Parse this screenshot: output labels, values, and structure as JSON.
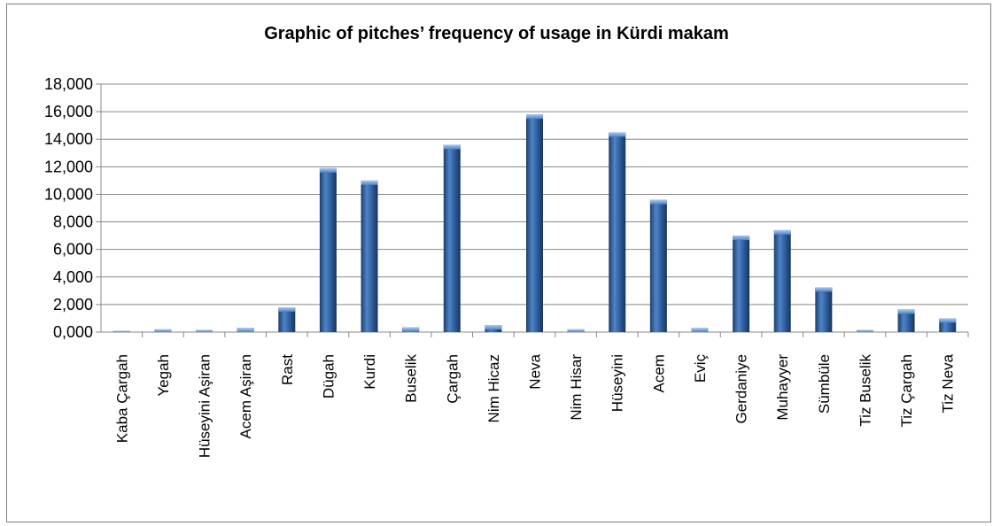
{
  "chart_data": {
    "type": "bar",
    "title": "Graphic of pitches’ frequency of usage in Kürdi makam",
    "xlabel": "",
    "ylabel": "",
    "ylim": [
      0,
      18000
    ],
    "y_ticks": [
      "0,000",
      "2,000",
      "4,000",
      "6,000",
      "8,000",
      "10,000",
      "12,000",
      "14,000",
      "16,000",
      "18,000"
    ],
    "grid": true,
    "legend": "none",
    "categories": [
      "Kaba Çargah",
      "Yegah",
      "Hüseyini Aşiran",
      "Acem Aşiran",
      "Rast",
      "Dügah",
      "Kurdi",
      "Buselik",
      "Çargah",
      "Nim Hicaz",
      "Neva",
      "Nim Hisar",
      "Hüseyini",
      "Acem",
      "Eviç",
      "Gerdaniye",
      "Muhayyer",
      "Sümbüle",
      "Tiz Buselik",
      "Tiz Çargah",
      "Tiz Neva"
    ],
    "values": [
      50,
      200,
      150,
      300,
      1800,
      11900,
      11000,
      350,
      13600,
      500,
      15800,
      200,
      14500,
      9600,
      300,
      7000,
      7400,
      3250,
      150,
      1650,
      1000
    ],
    "colors": {
      "bar_fill": "#2f5f9e",
      "bar_light": "#5b8fd4",
      "bar_dark": "#1c3f6e",
      "grid": "#888888",
      "axis": "#888888"
    }
  }
}
